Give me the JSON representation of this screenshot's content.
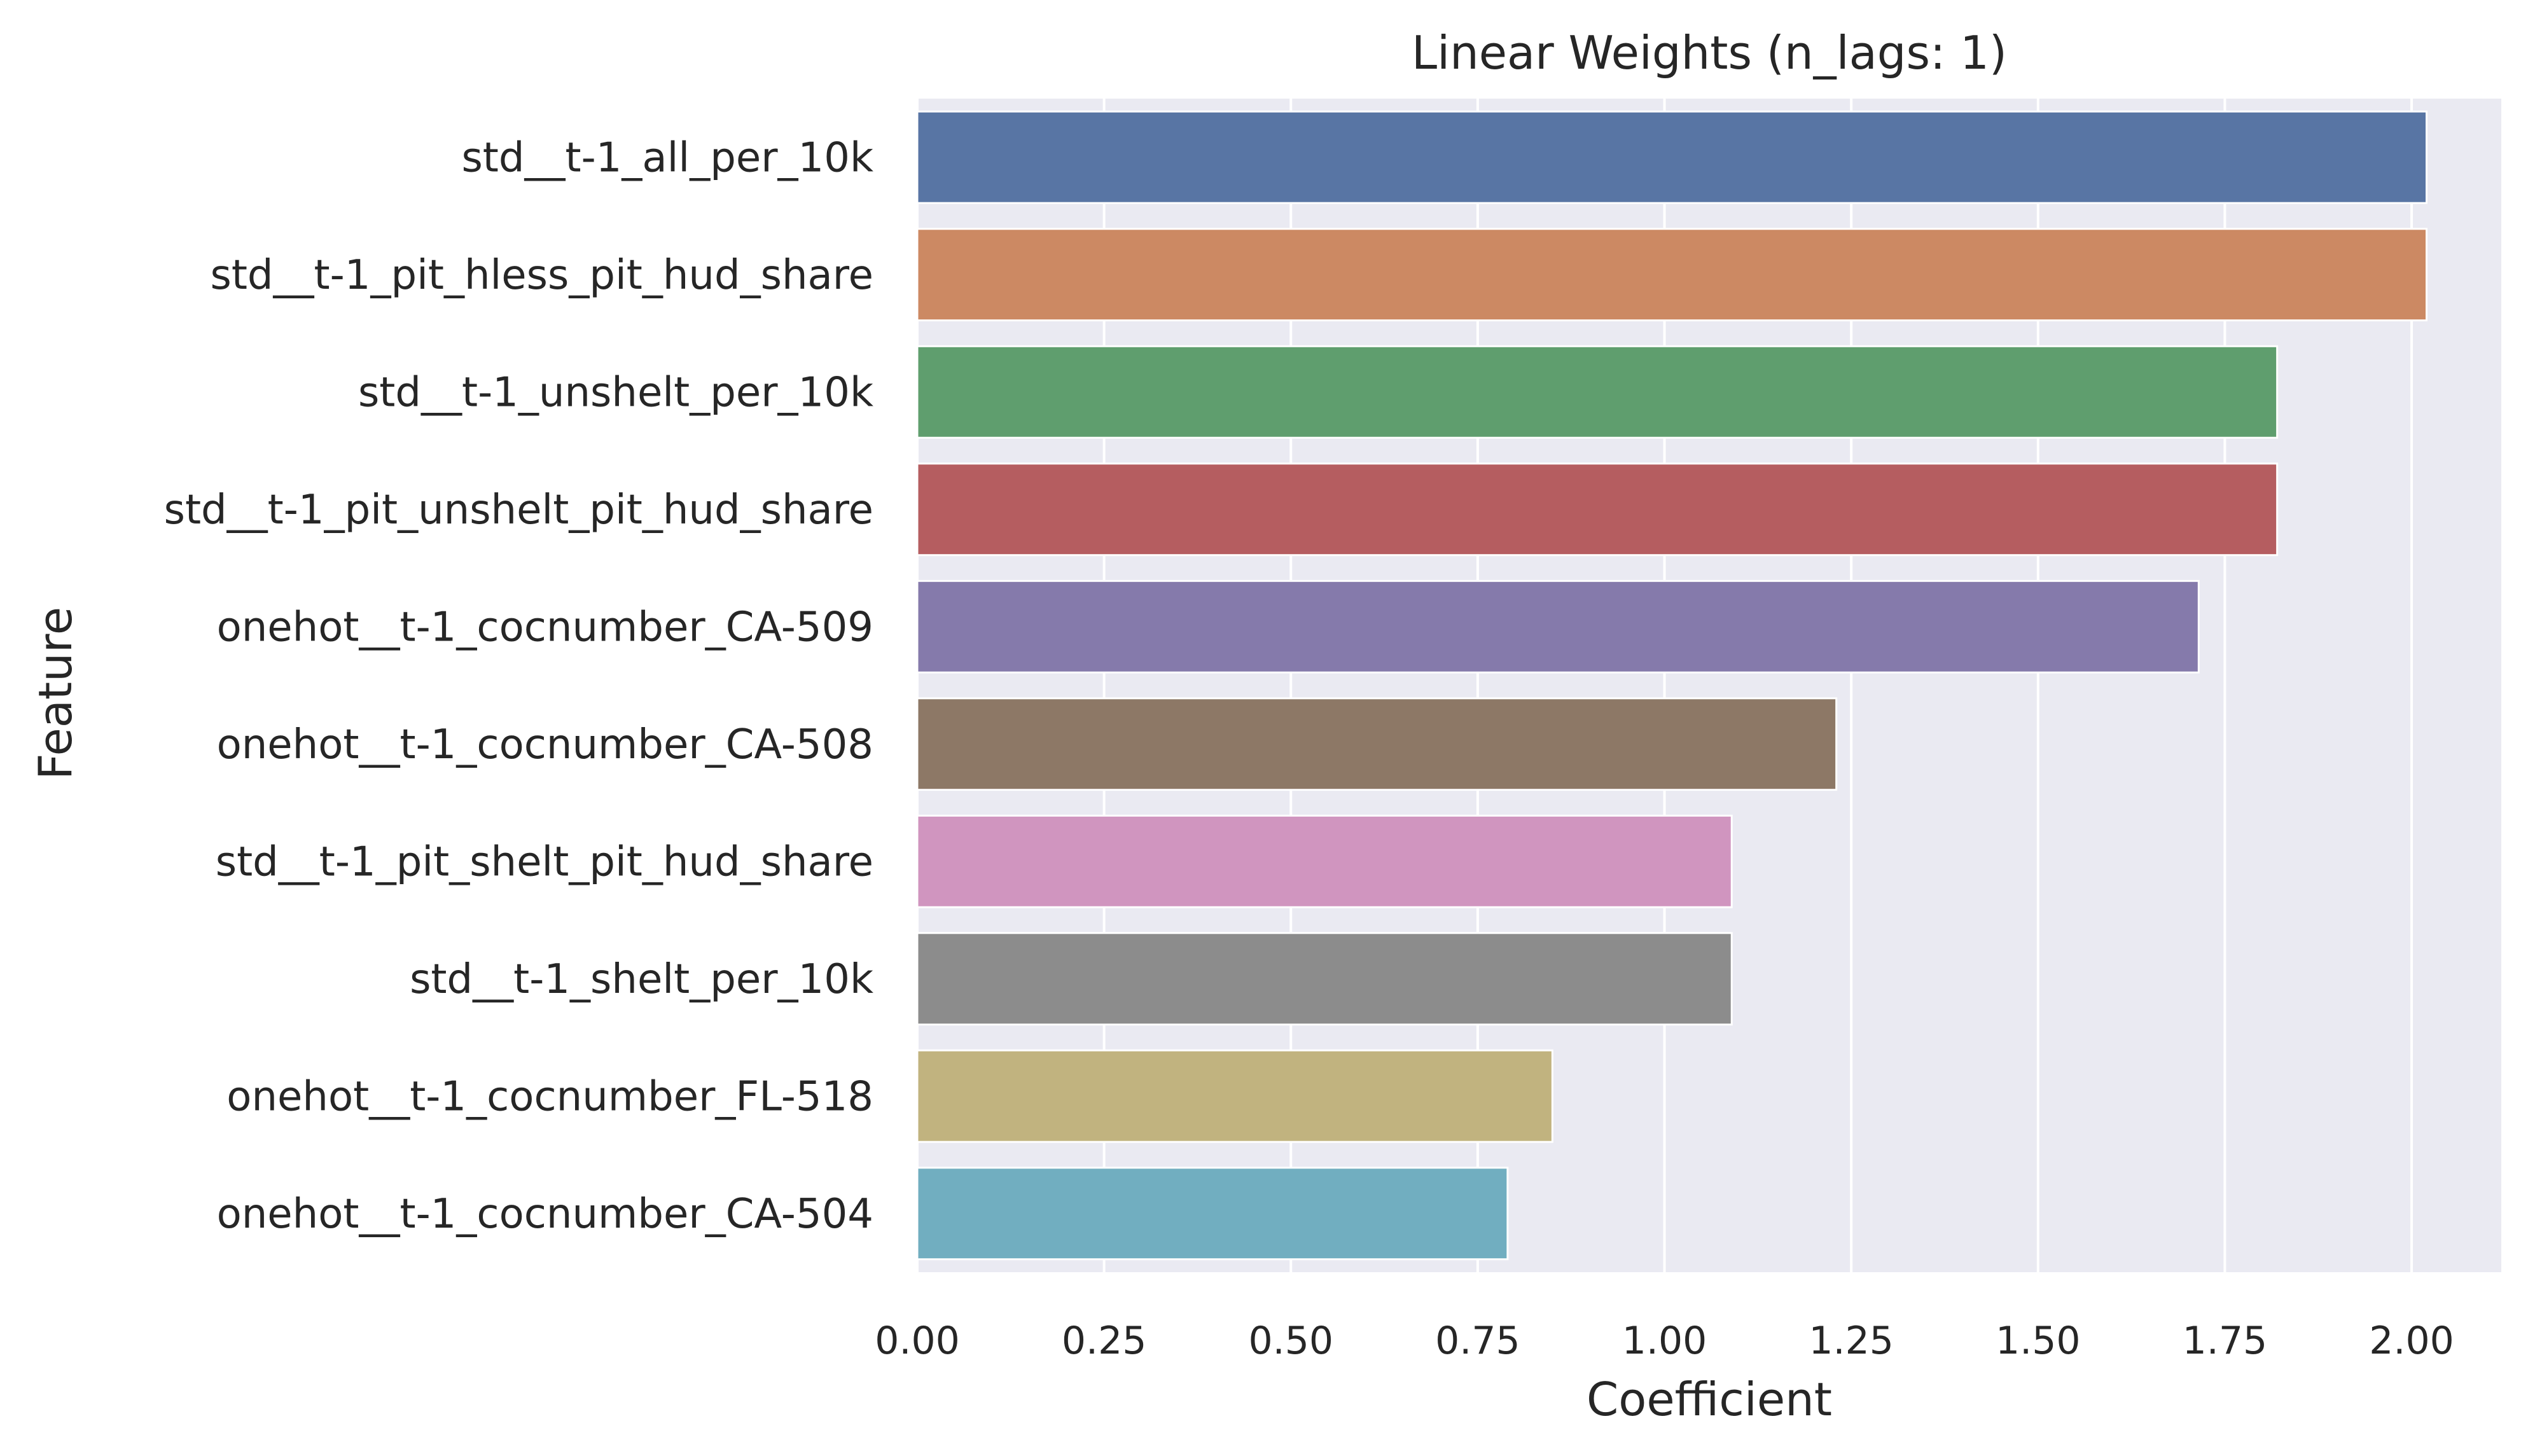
{
  "chart_data": {
    "type": "bar",
    "orientation": "horizontal",
    "title": "Linear Weights (n_lags: 1)",
    "xlabel": "Coefficient",
    "ylabel": "Feature",
    "xlim": [
      0,
      2.12
    ],
    "grid": true,
    "categories": [
      "std__t-1_all_per_10k",
      "std__t-1_pit_hless_pit_hud_share",
      "std__t-1_unshelt_per_10k",
      "std__t-1_pit_unshelt_pit_hud_share",
      "onehot__t-1_cocnumber_CA-509",
      "onehot__t-1_cocnumber_CA-508",
      "std__t-1_pit_shelt_pit_hud_share",
      "std__t-1_shelt_per_10k",
      "onehot__t-1_cocnumber_FL-518",
      "onehot__t-1_cocnumber_CA-504"
    ],
    "values": [
      2.02,
      2.02,
      1.82,
      1.82,
      1.715,
      1.23,
      1.09,
      1.09,
      0.85,
      0.79
    ],
    "colors": [
      "#5875a4",
      "#cc8963",
      "#5f9e6e",
      "#b55d60",
      "#857aab",
      "#8d7866",
      "#d095bf",
      "#8c8c8c",
      "#c1b37f",
      "#71aec0"
    ],
    "xticks": [
      "0.00",
      "0.25",
      "0.50",
      "0.75",
      "1.00",
      "1.25",
      "1.50",
      "1.75",
      "2.00"
    ],
    "background": "#eaeaf2",
    "gridcolor": "#ffffff"
  }
}
